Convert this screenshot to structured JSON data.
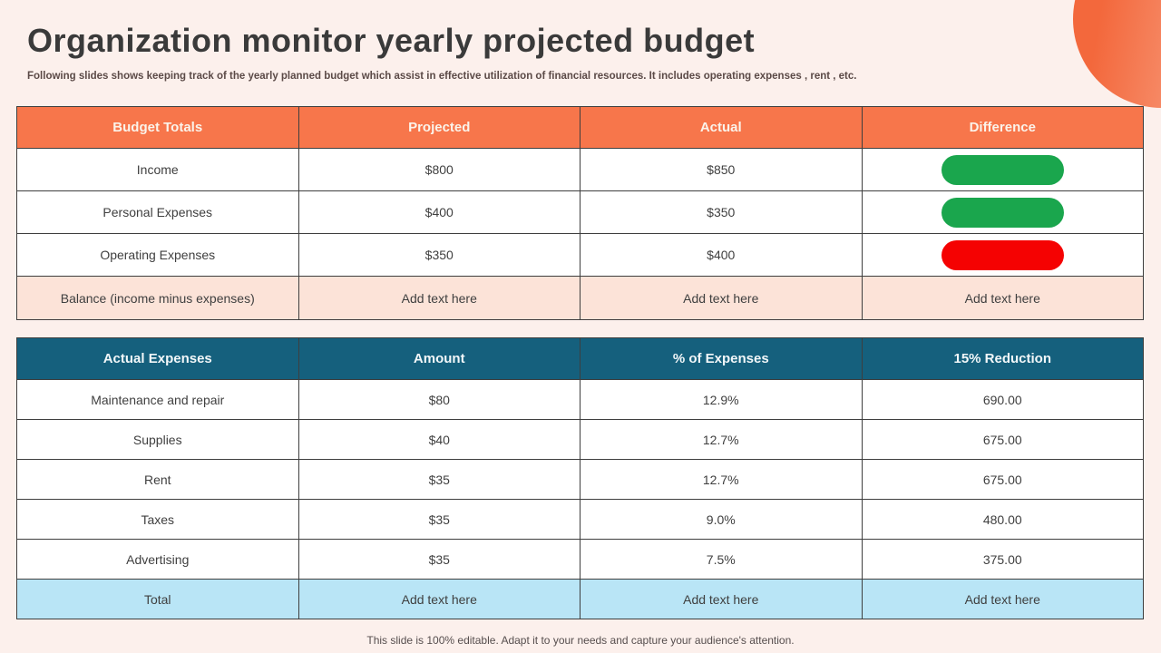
{
  "header": {
    "title": "Organization monitor yearly projected budget",
    "subtitle": "Following slides shows keeping track of the yearly  planned budget which assist in effective utilization of financial resources. It includes operating expenses , rent , etc."
  },
  "footer": {
    "note": "This slide is 100% editable. Adapt it to your needs and capture your audience's attention."
  },
  "colors": {
    "slideBackground": "#FCF0EC",
    "accentOrange": "#F7764B",
    "accentTeal": "#15607D",
    "positiveGreen": "#1AA64D",
    "negativeRed": "#F50202",
    "balanceRowPeach": "#FCE3D8",
    "totalRowBlue": "#B9E5F6",
    "circleGradientStart": "#F3683C",
    "circleGradientEnd": "#F9AA8E"
  },
  "budget_table": {
    "headers": [
      "Budget Totals",
      "Projected",
      "Actual",
      "Difference"
    ],
    "rows": [
      {
        "label": "Income",
        "projected": "$800",
        "actual": "$850",
        "difference_status": "positive"
      },
      {
        "label": "Personal Expenses",
        "projected": "$400",
        "actual": "$350",
        "difference_status": "positive"
      },
      {
        "label": "Operating Expenses",
        "projected": "$350",
        "actual": "$400",
        "difference_status": "negative"
      },
      {
        "label": "Balance (income minus expenses)",
        "projected": "Add text here",
        "actual": "Add text here",
        "difference": "Add text here"
      }
    ]
  },
  "expenses_table": {
    "headers": [
      "Actual Expenses",
      "Amount",
      "% of Expenses",
      "15% Reduction"
    ],
    "rows": [
      {
        "label": "Maintenance and repair",
        "amount": "$80",
        "percent": "12.9%",
        "reduction": "690.00"
      },
      {
        "label": "Supplies",
        "amount": "$40",
        "percent": "12.7%",
        "reduction": "675.00"
      },
      {
        "label": "Rent",
        "amount": "$35",
        "percent": "12.7%",
        "reduction": "675.00"
      },
      {
        "label": "Taxes",
        "amount": "$35",
        "percent": "9.0%",
        "reduction": "480.00"
      },
      {
        "label": "Advertising",
        "amount": "$35",
        "percent": "7.5%",
        "reduction": "375.00"
      },
      {
        "label": "Total",
        "amount": "Add text here",
        "percent": "Add text here",
        "reduction": "Add text here"
      }
    ]
  }
}
